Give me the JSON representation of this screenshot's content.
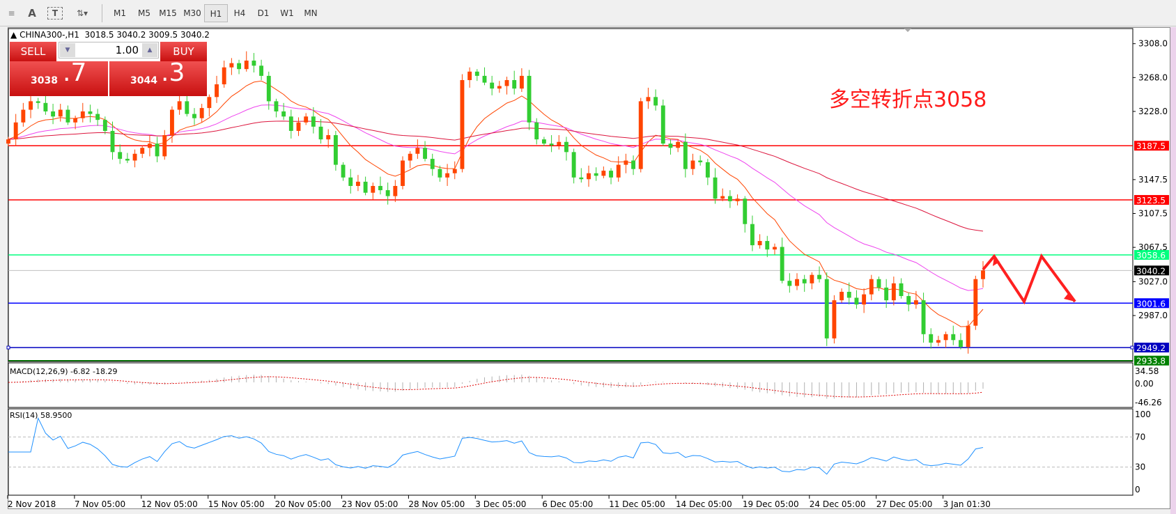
{
  "toolbar": {
    "icons": [
      "fibonacci-icon",
      "text-icon",
      "text-label-icon",
      "arrows-icon"
    ],
    "text_label": "A",
    "timeframes": [
      "M1",
      "M5",
      "M15",
      "M30",
      "H1",
      "H4",
      "D1",
      "W1",
      "MN"
    ],
    "active": "H1"
  },
  "header": {
    "symbol": "CHINA300-,H1",
    "ohlc": "3018.5 3040.2 3009.5 3040.2"
  },
  "trade": {
    "sell_label": "SELL",
    "buy_label": "BUY",
    "lot": "1.00",
    "sell_big": "3038",
    "sell_small": ".7",
    "buy_big": "3044",
    "buy_small": ".3"
  },
  "annotation": "多空转折点3058",
  "colors": {
    "up": "#ff4500",
    "down": "#32cd32",
    "ma_fast": "#ff4500",
    "ma_mid": "#ee44ee",
    "ma_slow": "#dc143c",
    "rsi": "#1e90ff",
    "macd_signal": "#e00000"
  },
  "chart_data": {
    "type": "candlestick",
    "symbol": "CHINA300-",
    "timeframe": "H1",
    "ylim": [
      2925,
      3320
    ],
    "price_ticks": [
      "3308.0",
      "3268.0",
      "3228.0",
      "3147.5",
      "3107.5",
      "3067.5",
      "3027.0",
      "2987.0"
    ],
    "levels": [
      {
        "value": "3187.5",
        "color": "#ff0000",
        "text_color": "#ffffff"
      },
      {
        "value": "3123.5",
        "color": "#ff0000",
        "text_color": "#ffffff"
      },
      {
        "value": "3058.6",
        "color": "#00ff7f",
        "text_color": "#ffffff"
      },
      {
        "value": "3040.2",
        "color": "#000000",
        "line": "#c0c0c0",
        "text_color": "#ffffff"
      },
      {
        "value": "3001.6",
        "color": "#0000ff",
        "text_color": "#ffffff"
      },
      {
        "value": "2949.2",
        "color": "#0000c0",
        "text_color": "#ffffff"
      },
      {
        "value": "2933.8",
        "color": "#008000",
        "text_color": "#ffffff"
      }
    ],
    "closes": [
      3195,
      3215,
      3230,
      3240,
      3238,
      3228,
      3222,
      3230,
      3215,
      3220,
      3228,
      3225,
      3218,
      3205,
      3180,
      3172,
      3170,
      3178,
      3185,
      3190,
      3175,
      3200,
      3230,
      3240,
      3225,
      3220,
      3232,
      3245,
      3260,
      3280,
      3285,
      3278,
      3288,
      3282,
      3270,
      3240,
      3228,
      3222,
      3205,
      3215,
      3222,
      3210,
      3195,
      3200,
      3165,
      3150,
      3140,
      3145,
      3132,
      3140,
      3135,
      3128,
      3140,
      3170,
      3178,
      3185,
      3172,
      3160,
      3150,
      3155,
      3160,
      3265,
      3275,
      3270,
      3262,
      3255,
      3258,
      3265,
      3255,
      3270,
      3215,
      3195,
      3190,
      3188,
      3192,
      3180,
      3150,
      3148,
      3155,
      3152,
      3158,
      3150,
      3165,
      3170,
      3160,
      3240,
      3245,
      3235,
      3190,
      3185,
      3192,
      3160,
      3170,
      3168,
      3150,
      3125,
      3128,
      3122,
      3125,
      3095,
      3070,
      3075,
      3065,
      3068,
      3028,
      3022,
      3030,
      3025,
      3035,
      3030,
      2960,
      3005,
      3015,
      3008,
      3000,
      3012,
      3030,
      3020,
      3005,
      3025,
      3010,
      3000,
      3005,
      2965,
      2955,
      2958,
      2965,
      2958,
      2950,
      2975,
      3030,
      3040.2
    ],
    "time_labels": [
      "2 Nov 2018",
      "7 Nov 05:00",
      "12 Nov 05:00",
      "15 Nov 05:00",
      "20 Nov 05:00",
      "23 Nov 05:00",
      "28 Nov 05:00",
      "3 Dec 05:00",
      "6 Dec 05:00",
      "11 Dec 05:00",
      "14 Dec 05:00",
      "19 Dec 05:00",
      "24 Dec 05:00",
      "27 Dec 05:00",
      "3 Jan 01:30"
    ],
    "macd": {
      "label": "MACD(12,26,9) -6.82 -18.29",
      "ticks": [
        "34.58",
        "0.00",
        "-46.26"
      ]
    },
    "rsi": {
      "label": "RSI(14) 58.9500",
      "ticks": [
        "100",
        "70",
        "30",
        "0"
      ],
      "levels": [
        70,
        30
      ]
    }
  }
}
